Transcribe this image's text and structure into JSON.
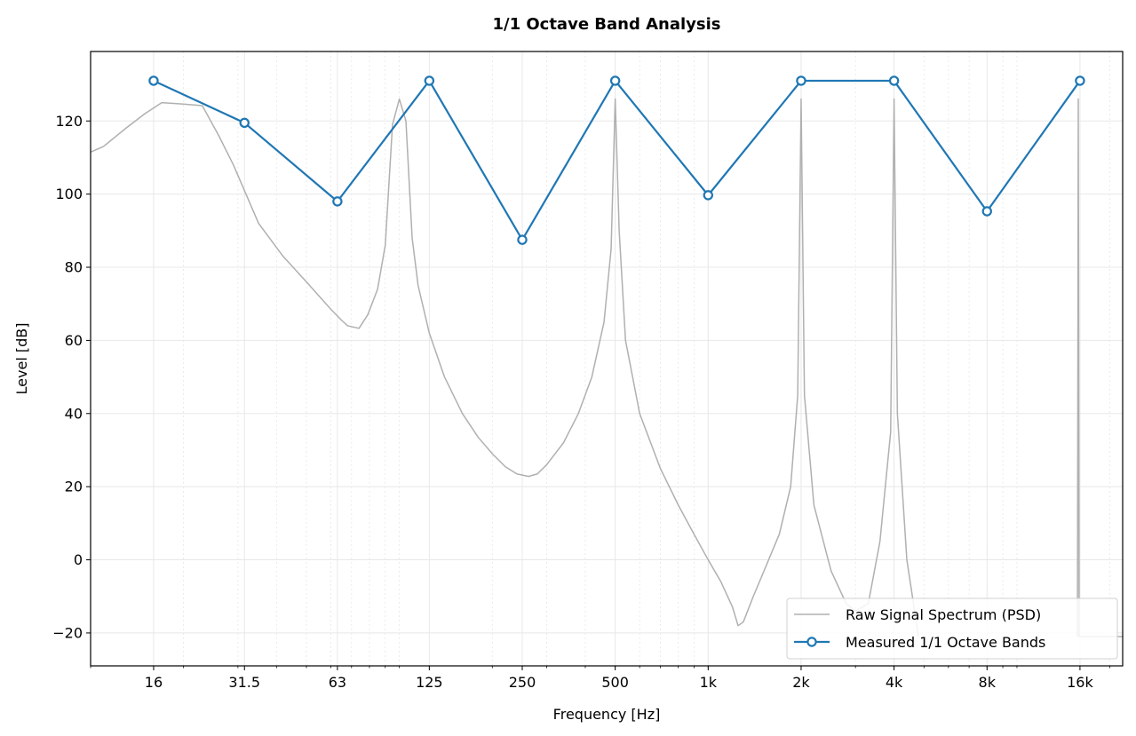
{
  "chart_data": {
    "type": "line",
    "title": "1/1 Octave Band Analysis",
    "xlabel": "Frequency [Hz]",
    "ylabel": "Level [dB]",
    "xscale": "log",
    "xlim": [
      10,
      22000
    ],
    "ylim": [
      -29,
      139
    ],
    "grid": true,
    "legend_location": "bottom-right",
    "x_ticks": [
      {
        "value": 16,
        "label": "16"
      },
      {
        "value": 31.5,
        "label": "31.5"
      },
      {
        "value": 63,
        "label": "63"
      },
      {
        "value": 125,
        "label": "125"
      },
      {
        "value": 250,
        "label": "250"
      },
      {
        "value": 500,
        "label": "500"
      },
      {
        "value": 1000,
        "label": "1k"
      },
      {
        "value": 2000,
        "label": "2k"
      },
      {
        "value": 4000,
        "label": "4k"
      },
      {
        "value": 8000,
        "label": "8k"
      },
      {
        "value": 16000,
        "label": "16k"
      }
    ],
    "y_ticks": [
      {
        "value": -20,
        "label": "−20"
      },
      {
        "value": 0,
        "label": "0"
      },
      {
        "value": 20,
        "label": "20"
      },
      {
        "value": 40,
        "label": "40"
      },
      {
        "value": 60,
        "label": "60"
      },
      {
        "value": 80,
        "label": "80"
      },
      {
        "value": 100,
        "label": "100"
      },
      {
        "value": 120,
        "label": "120"
      }
    ],
    "series": [
      {
        "name": "Raw Signal Spectrum (PSD)",
        "color": "#b0b0b0",
        "marker": "none",
        "points": [
          [
            10,
            111.5
          ],
          [
            11,
            113
          ],
          [
            13,
            118
          ],
          [
            15,
            122
          ],
          [
            17,
            125
          ],
          [
            20,
            124.6
          ],
          [
            23,
            124.2
          ],
          [
            26,
            116
          ],
          [
            29,
            108
          ],
          [
            35,
            92
          ],
          [
            42,
            83
          ],
          [
            50,
            76
          ],
          [
            60,
            68.5
          ],
          [
            65,
            65.5
          ],
          [
            68,
            64
          ],
          [
            74,
            63.3
          ],
          [
            79,
            67
          ],
          [
            85,
            74
          ],
          [
            90,
            86
          ],
          [
            95,
            119
          ],
          [
            100,
            126
          ],
          [
            105,
            120
          ],
          [
            110,
            88
          ],
          [
            115,
            75
          ],
          [
            125,
            62
          ],
          [
            140,
            50
          ],
          [
            160,
            40
          ],
          [
            180,
            33.5
          ],
          [
            200,
            29
          ],
          [
            220,
            25.5
          ],
          [
            240,
            23.5
          ],
          [
            262,
            22.8
          ],
          [
            280,
            23.5
          ],
          [
            300,
            26
          ],
          [
            340,
            32
          ],
          [
            380,
            40
          ],
          [
            420,
            50
          ],
          [
            460,
            65
          ],
          [
            485,
            85
          ],
          [
            500,
            126
          ],
          [
            515,
            90
          ],
          [
            540,
            60
          ],
          [
            600,
            40
          ],
          [
            700,
            25
          ],
          [
            800,
            15
          ],
          [
            900,
            7
          ],
          [
            1000,
            0
          ],
          [
            1100,
            -6
          ],
          [
            1200,
            -13
          ],
          [
            1250,
            -18
          ],
          [
            1300,
            -17
          ],
          [
            1400,
            -10
          ],
          [
            1500,
            -4
          ],
          [
            1700,
            7
          ],
          [
            1850,
            20
          ],
          [
            1950,
            45
          ],
          [
            2000,
            126
          ],
          [
            2050,
            45
          ],
          [
            2200,
            15
          ],
          [
            2500,
            -3
          ],
          [
            2800,
            -12
          ],
          [
            3000,
            -14
          ],
          [
            3300,
            -12
          ],
          [
            3600,
            5
          ],
          [
            3900,
            35
          ],
          [
            4000,
            126
          ],
          [
            4100,
            40
          ],
          [
            4400,
            0
          ],
          [
            4800,
            -21
          ]
        ]
      },
      {
        "name": "Raw Signal Spectrum (PSD)",
        "color": "#b0b0b0",
        "marker": "none",
        "points": [
          [
            15700,
            -21
          ],
          [
            15800,
            126
          ],
          [
            15900,
            -21
          ],
          [
            17000,
            -21
          ],
          [
            20000,
            -21
          ],
          [
            22000,
            -21
          ]
        ]
      },
      {
        "name": "Measured 1/1 Octave Bands",
        "color": "#1f77b4",
        "marker": "circle",
        "points": [
          [
            16,
            131
          ],
          [
            31.5,
            119.5
          ],
          [
            63,
            98
          ],
          [
            125,
            131
          ],
          [
            250,
            87.5
          ],
          [
            500,
            131
          ],
          [
            1000,
            99.7
          ],
          [
            2000,
            131
          ],
          [
            4000,
            131
          ],
          [
            8000,
            95.3
          ],
          [
            16000,
            131
          ]
        ]
      }
    ],
    "legend": [
      {
        "label": "Raw Signal Spectrum (PSD)",
        "color": "#b0b0b0",
        "marker": "none"
      },
      {
        "label": "Measured 1/1 Octave Bands",
        "color": "#1f77b4",
        "marker": "circle"
      }
    ]
  }
}
